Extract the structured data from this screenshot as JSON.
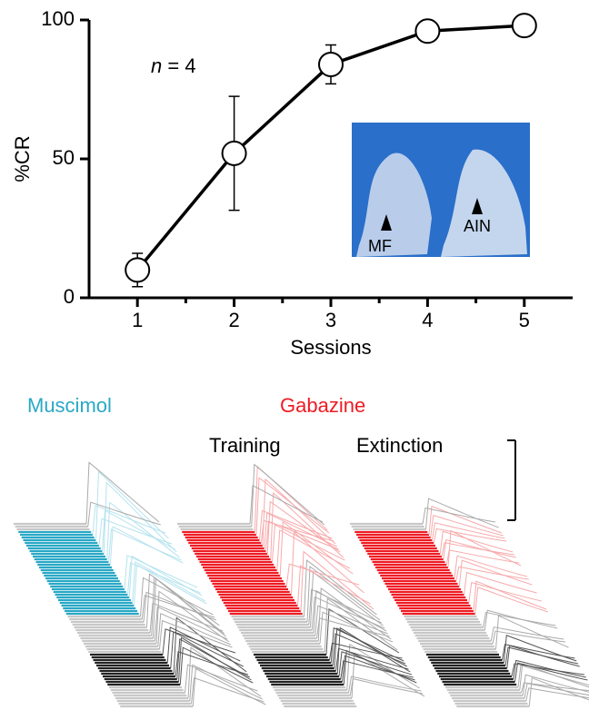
{
  "chart_data": {
    "type": "line",
    "y_label": "%CR",
    "x_label": "Sessions",
    "annotation": {
      "prefix": "n",
      "text": " = 4"
    },
    "x": [
      1,
      2,
      3,
      4,
      5
    ],
    "xlim": [
      0.5,
      5.5
    ],
    "xticks": [
      1,
      2,
      3,
      4,
      5
    ],
    "x_minor_ticks": [
      1.5,
      2.5,
      3.5,
      4.5
    ],
    "ylim": [
      0,
      100
    ],
    "yticks": [
      0,
      50,
      100
    ],
    "values": [
      10,
      52,
      84,
      96,
      98
    ],
    "errors": [
      6,
      20.5,
      7,
      null,
      null
    ],
    "color": "#000000",
    "marker_fill": "#ffffff",
    "image_labels": [
      "MF",
      "AIN"
    ],
    "panel_labels": [
      {
        "text": "Muscimol",
        "color": "#29a8c6"
      },
      {
        "text": "Gabazine",
        "color": "#ee1c24"
      },
      {
        "text": "Training",
        "color": "#000000"
      },
      {
        "text": "Extinction",
        "color": "#000000"
      }
    ]
  }
}
